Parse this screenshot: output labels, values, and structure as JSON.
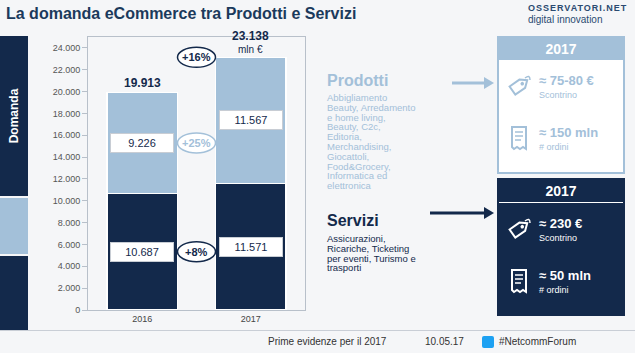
{
  "header": {
    "title": "La domanda eCommerce tra Prodotti e Servizi",
    "logo": "OSSERVATORI.NET",
    "logo_subtitle": "digital innovation"
  },
  "chart_data": {
    "type": "bar",
    "stacked": true,
    "data_labels": true,
    "grid": false,
    "ylabel": "Domanda",
    "categories": [
      "2016",
      "2017"
    ],
    "series": [
      {
        "name": "Servizi",
        "color": "#13294b",
        "values": [
          10687,
          11571
        ],
        "value_labels": [
          "10.687",
          "11.571"
        ],
        "growth": "+8%"
      },
      {
        "name": "Prodotti",
        "color": "#a3c0d9",
        "values": [
          9226,
          11567
        ],
        "value_labels": [
          "9.226",
          "11.567"
        ],
        "growth": "+25%"
      }
    ],
    "totals": [
      19913,
      23138
    ],
    "total_labels": [
      "19.913",
      "23.138"
    ],
    "total_unit": "mln €",
    "total_growth": "+16%",
    "ylim": [
      0,
      25000
    ],
    "yticks": [
      0,
      {
        "value": 2000,
        "label": "2.000"
      },
      {
        "value": 4000,
        "label": "4.000"
      },
      {
        "value": 6000,
        "label": "6.000"
      },
      {
        "value": 8000,
        "label": "8.000"
      },
      {
        "value": 10000,
        "label": "10.000"
      },
      {
        "value": 12000,
        "label": "12.000"
      },
      {
        "value": 14000,
        "label": "14.000"
      },
      {
        "value": 16000,
        "label": "16.000"
      },
      {
        "value": 18000,
        "label": "18.000"
      },
      {
        "value": 20000,
        "label": "20.000"
      },
      {
        "value": 22000,
        "label": "22.000"
      },
      {
        "value": 24000,
        "label": "24.000"
      }
    ]
  },
  "panels": [
    {
      "name": "Prodotti",
      "items": [
        "Abbigliamento",
        "Beauty, Arredamento",
        "e home living,",
        "Beauty, C2c,",
        "Editoria,",
        "Merchandising,",
        "Giocattoli,",
        "Food&Grocery,",
        "Informatica ed",
        "elettronica"
      ],
      "box": {
        "title": "2017",
        "rows": [
          {
            "value": "≈ 75-80 €",
            "label": "Scontrino"
          },
          {
            "value": "≈ 150 mln",
            "label": "# ordini"
          }
        ]
      }
    },
    {
      "name": "Servizi",
      "items": [
        "Assicurazioni,",
        "Ricariche, Ticketing",
        "per eventi, Turismo e",
        "trasporti"
      ],
      "box": {
        "title": "2017",
        "rows": [
          {
            "value": "≈ 230 €",
            "label": "Scontrino"
          },
          {
            "value": "≈ 50 mln",
            "label": "# ordini"
          }
        ]
      }
    }
  ],
  "footer": {
    "text": "Prime evidenze per il 2017",
    "date": "10.05.17",
    "hashtag": "#NetcommForum"
  }
}
